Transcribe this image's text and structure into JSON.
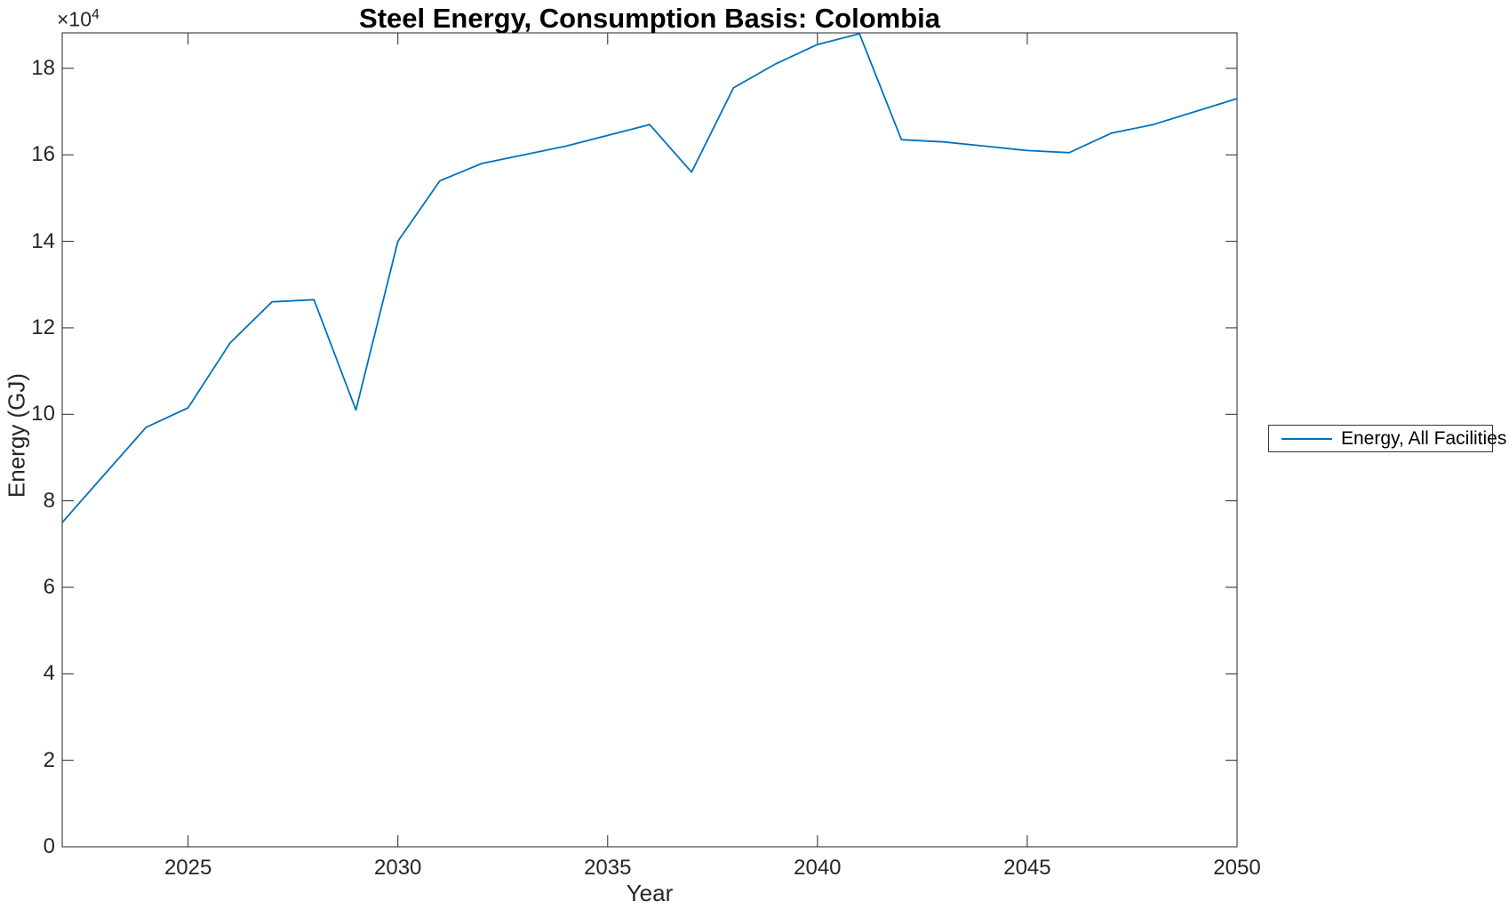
{
  "title": "Steel Energy, Consumption Basis: Colombia",
  "axes": {
    "xlabel": "Year",
    "ylabel": "Energy (GJ)",
    "y_multiplier_base": "×10",
    "y_multiplier_exp": "4"
  },
  "legend": {
    "entries": [
      {
        "label": "Energy, All Facilities",
        "color": "#0072BD"
      }
    ]
  },
  "colors": {
    "line": "#0072BD",
    "axis": "#262626",
    "text": "#262626",
    "background": "#ffffff"
  },
  "chart_data": {
    "type": "line",
    "title": "Steel Energy, Consumption Basis: Colombia",
    "xlabel": "Year",
    "ylabel": "Energy (GJ)",
    "y_unit_multiplier": "1e4",
    "grid": false,
    "legend_position": "right-outside",
    "xlim": [
      2022,
      2050
    ],
    "ylim": [
      0,
      18.82
    ],
    "x_ticks": [
      2025,
      2030,
      2035,
      2040,
      2045,
      2050
    ],
    "y_ticks": [
      0,
      2,
      4,
      6,
      8,
      10,
      12,
      14,
      16,
      18
    ],
    "x": [
      2022,
      2023,
      2024,
      2025,
      2026,
      2027,
      2028,
      2029,
      2030,
      2031,
      2032,
      2033,
      2034,
      2035,
      2036,
      2037,
      2038,
      2039,
      2040,
      2041,
      2042,
      2043,
      2044,
      2045,
      2046,
      2047,
      2048,
      2049,
      2050
    ],
    "series": [
      {
        "name": "Energy, All Facilities",
        "color": "#0072BD",
        "values": [
          7.5,
          8.6,
          9.7,
          10.15,
          11.65,
          12.6,
          12.65,
          10.1,
          14.0,
          15.4,
          15.8,
          16.0,
          16.2,
          16.45,
          16.7,
          15.6,
          17.55,
          18.1,
          18.55,
          18.8,
          16.35,
          16.3,
          16.2,
          16.1,
          16.05,
          16.5,
          16.7,
          17.0,
          17.3
        ]
      }
    ]
  }
}
